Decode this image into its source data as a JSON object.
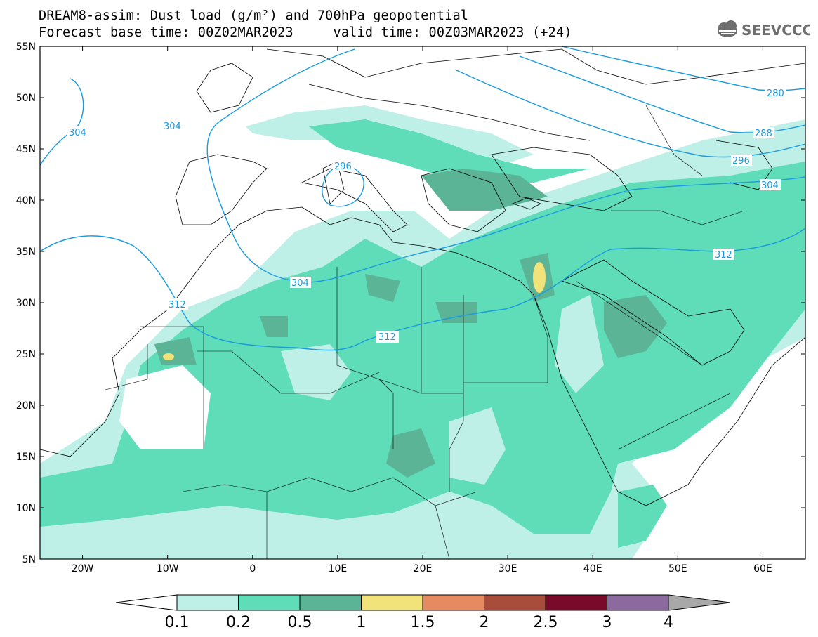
{
  "title": {
    "line1": "DREAM8-assim: Dust load (g/m²) and 700hPa geopotential",
    "line2": "Forecast base time: 00Z02MAR2023     valid time: 00Z03MAR2023 (+24)"
  },
  "logo": {
    "text": "SEEVCCC",
    "icon": "cloud-icon"
  },
  "map": {
    "lon_range": [
      -25,
      65
    ],
    "lat_range": [
      5,
      55
    ],
    "x_ticks": [
      "20W",
      "10W",
      "0",
      "10E",
      "20E",
      "30E",
      "40E",
      "50E",
      "60E"
    ],
    "y_ticks": [
      "55N",
      "50N",
      "45N",
      "40N",
      "35N",
      "30N",
      "25N",
      "20N",
      "15N",
      "10N",
      "5N"
    ],
    "contour_labels": [
      "304",
      "304",
      "296",
      "304",
      "312",
      "312",
      "312",
      "280",
      "288",
      "296",
      "304"
    ],
    "colors": {
      "contour": "#1a9be0",
      "border": "#000000"
    }
  },
  "colorbar": {
    "labels": [
      "0.1",
      "0.2",
      "0.5",
      "1",
      "1.5",
      "2",
      "2.5",
      "3",
      "4"
    ],
    "colors": [
      "#ffffff",
      "#bff0e8",
      "#5fdcb8",
      "#5cb496",
      "#f2e27a",
      "#e68a62",
      "#a84c3c",
      "#7a0a2a",
      "#8c6aa0",
      "#a8a8a8"
    ]
  }
}
